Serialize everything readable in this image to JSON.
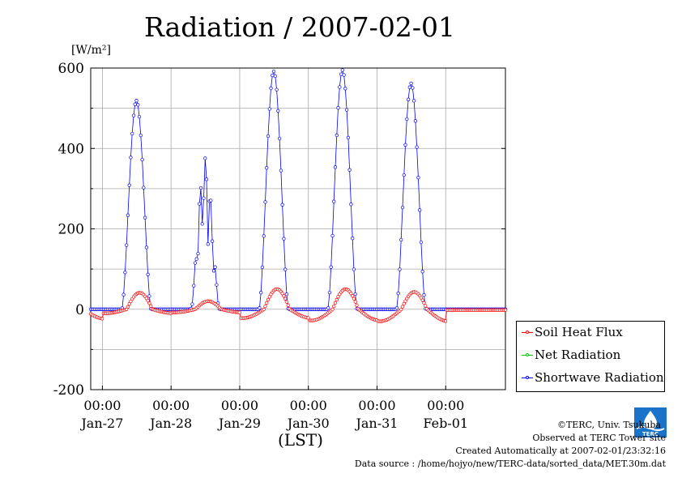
{
  "title": "Radiation / 2007-02-01",
  "unit_label": "[W/m²]",
  "x_unit_label": "(LST)",
  "legend": [
    {
      "label": "Soil Heat Flux",
      "color": "#ff0000"
    },
    {
      "label": "Net Radiation",
      "color": "#00cc00"
    },
    {
      "label": "Shortwave Radiation",
      "color": "#0000ff"
    }
  ],
  "credits": {
    "copyright": "©TERC, Univ. Tsukuba",
    "observed": "Observed at TERC Tower site",
    "created": "Created Automatically at 2007-02-01/23:32:16",
    "source": "Data source : /home/hojyo/new/TERC-data/sorted_data/MET.30m.dat"
  },
  "logo": {
    "text": "TERC",
    "color": "#1a73c8"
  },
  "chart_data": {
    "type": "line",
    "title": "Radiation / 2007-02-01",
    "ylabel": "[W/m²]",
    "xlabel": "(LST)",
    "ylim": [
      -200,
      600
    ],
    "yticks": [
      "600",
      "400",
      "200",
      "0",
      "-200"
    ],
    "ytick_values": [
      600,
      400,
      200,
      0,
      -200
    ],
    "xlim": [
      "2007-01-26 00:00",
      "2007-02-02 00:00"
    ],
    "xticks": [
      {
        "time": "00:00",
        "date": "Jan-27"
      },
      {
        "time": "00:00",
        "date": "Jan-28"
      },
      {
        "time": "00:00",
        "date": "Jan-29"
      },
      {
        "time": "00:00",
        "date": "Jan-30"
      },
      {
        "time": "00:00",
        "date": "Jan-31"
      },
      {
        "time": "00:00",
        "date": "Feb-01"
      }
    ],
    "grid": true,
    "legend_position": "right-outside",
    "series": [
      {
        "name": "Shortwave Radiation",
        "color": "#0000ff",
        "days": [
          {
            "date": "2007-01-26",
            "peak": 578
          },
          {
            "date": "2007-01-27",
            "peak": 519
          },
          {
            "date": "2007-01-28",
            "peak": 378
          },
          {
            "date": "2007-01-29",
            "peak": 592
          },
          {
            "date": "2007-01-30",
            "peak": 595
          },
          {
            "date": "2007-01-31",
            "peak": 562
          }
        ]
      },
      {
        "name": "Soil Heat Flux",
        "color": "#ff0000",
        "days": [
          {
            "date": "2007-01-26",
            "peak": 43,
            "min": -24
          },
          {
            "date": "2007-01-27",
            "peak": 41,
            "min": -10
          },
          {
            "date": "2007-01-28",
            "peak": 20,
            "min": -8
          },
          {
            "date": "2007-01-29",
            "peak": 50,
            "min": -22
          },
          {
            "date": "2007-01-30",
            "peak": 50,
            "min": -28
          },
          {
            "date": "2007-01-31",
            "peak": 43,
            "min": -30
          }
        ]
      },
      {
        "name": "Net Radiation",
        "color": "#00cc00",
        "days": []
      }
    ]
  }
}
